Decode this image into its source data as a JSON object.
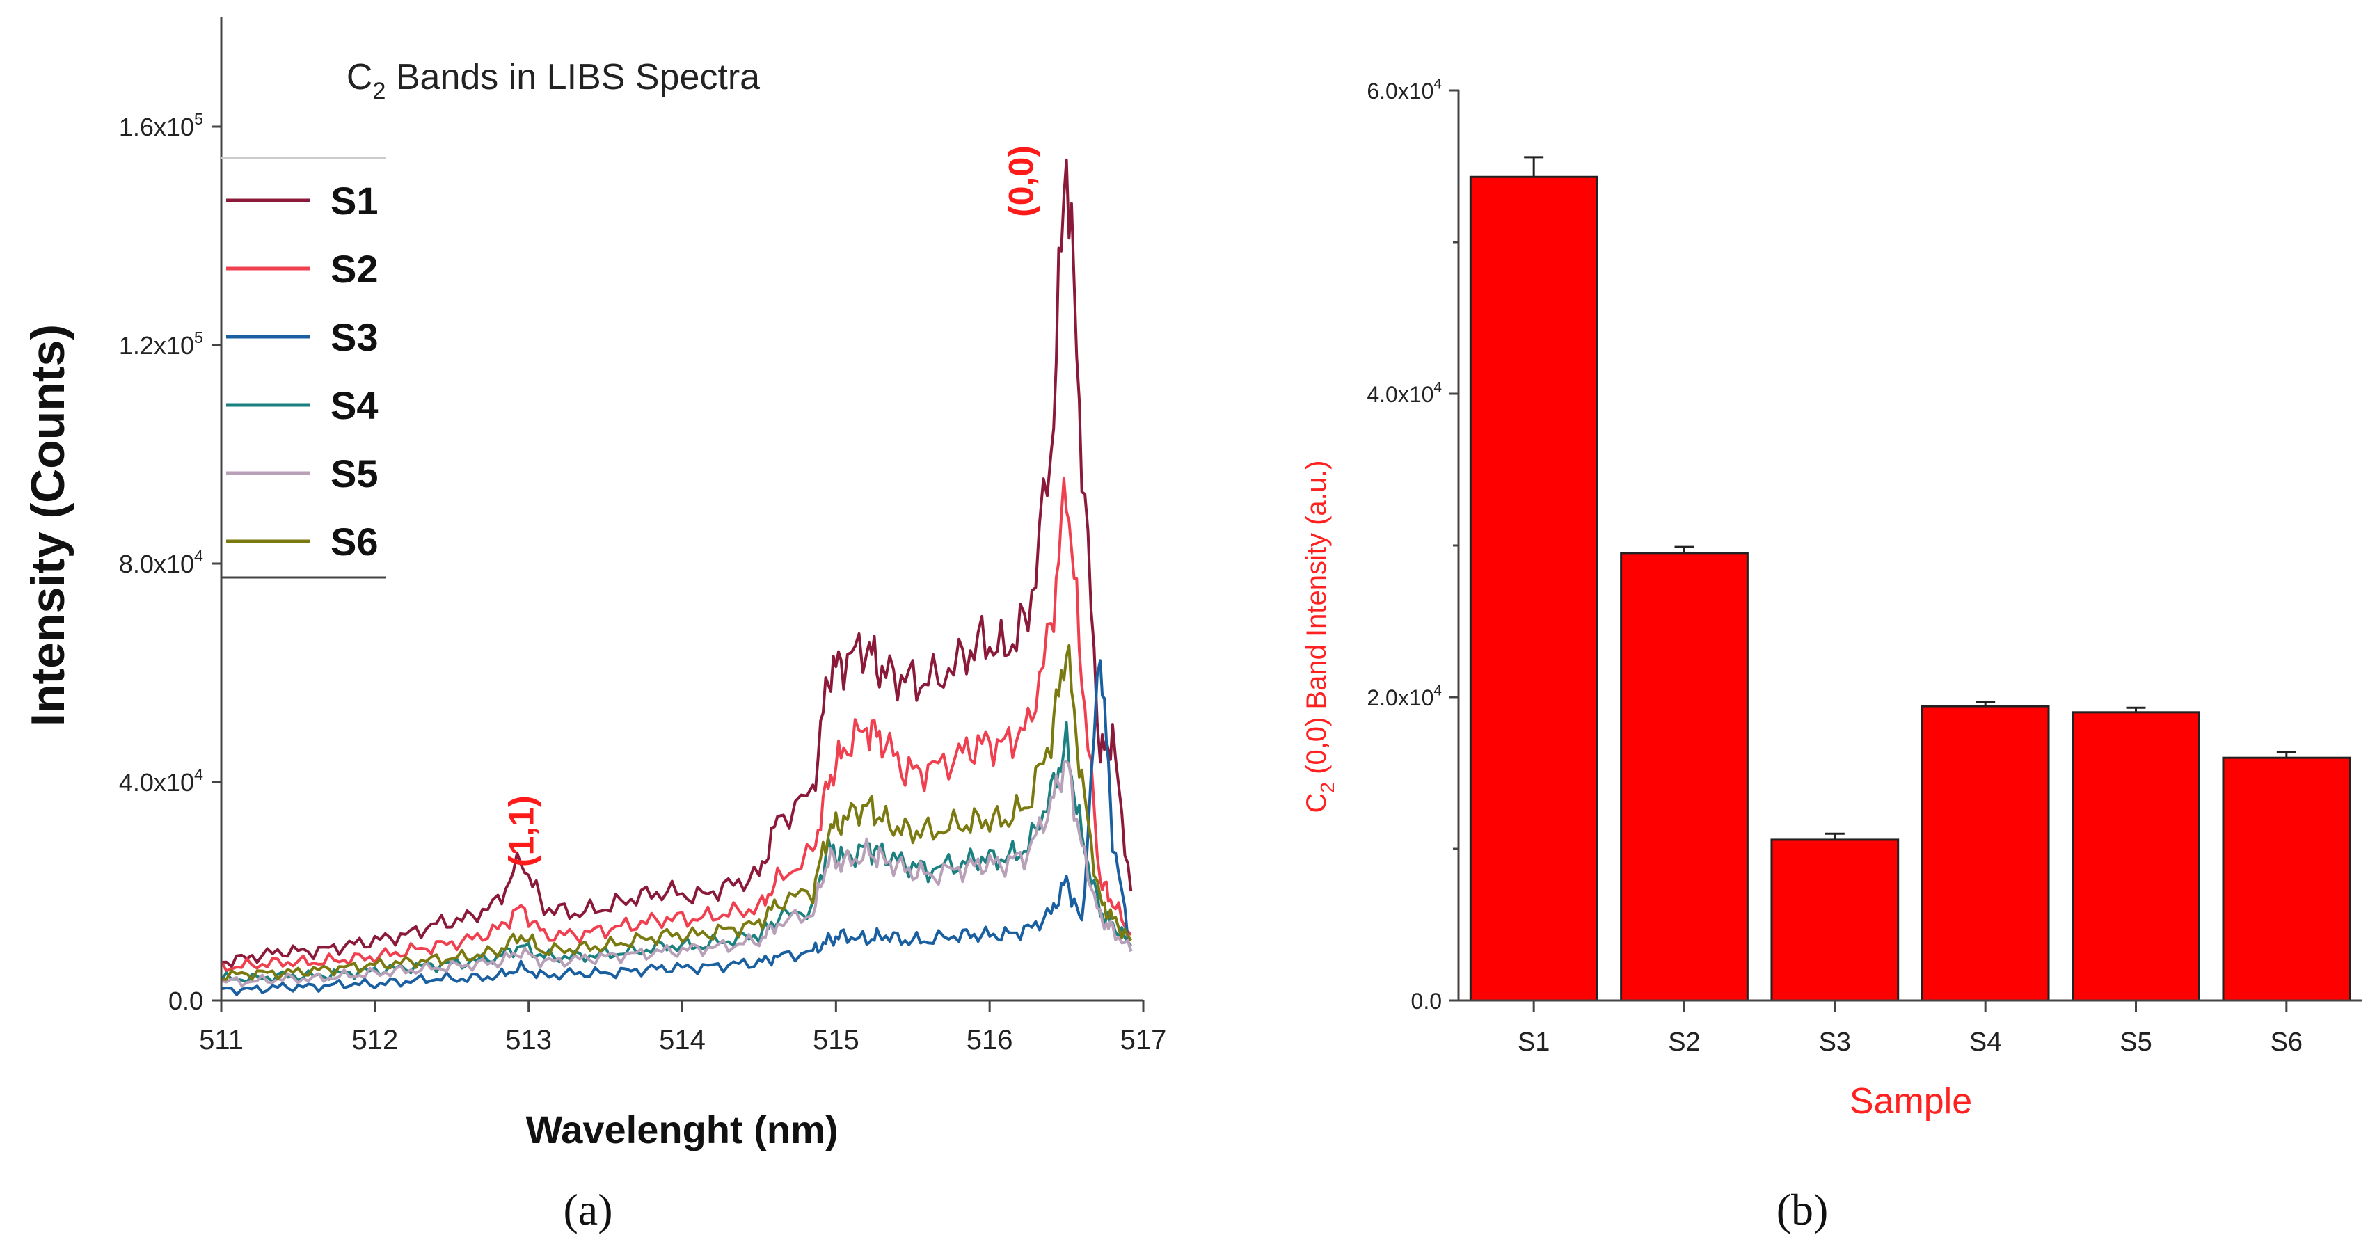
{
  "chart_data": [
    {
      "type": "line",
      "panel_label": "(a)",
      "title_main": "C",
      "title_sub": "2",
      "title_rest": " Bands in LIBS Spectra",
      "xlabel": "Wavelenght (nm)",
      "ylabel": "Intensity (Counts)",
      "xlim": [
        511,
        517
      ],
      "ylim": [
        0,
        180000
      ],
      "x_ticks": [
        511,
        512,
        513,
        514,
        515,
        516,
        517
      ],
      "x_tick_labels": [
        "511",
        "512",
        "513",
        "514",
        "515",
        "516",
        "517"
      ],
      "y_ticks": [
        0,
        40000,
        80000,
        120000,
        160000
      ],
      "y_tick_labels": [
        {
          "base": "0.0",
          "exp": ""
        },
        {
          "base": "4.0x10",
          "exp": "4"
        },
        {
          "base": "8.0x10",
          "exp": "4"
        },
        {
          "base": "1.2x10",
          "exp": "5"
        },
        {
          "base": "1.6x10",
          "exp": "5"
        }
      ],
      "annotations": [
        {
          "text": "(1,1)",
          "x": 512.95,
          "y": 31000
        },
        {
          "text": "(0,0)",
          "x": 516.2,
          "y": 150000
        }
      ],
      "legend_position": "top-left",
      "x": [
        511.0,
        511.2,
        511.4,
        511.6,
        511.8,
        512.0,
        512.2,
        512.4,
        512.6,
        512.8,
        512.95,
        513.1,
        513.3,
        513.5,
        513.7,
        513.9,
        514.1,
        514.3,
        514.5,
        514.62,
        514.85,
        514.95,
        515.05,
        515.2,
        515.3,
        515.45,
        515.6,
        515.8,
        515.95,
        516.1,
        516.25,
        516.4,
        516.5,
        516.6,
        516.72,
        516.8,
        516.92
      ],
      "series": [
        {
          "name": "S1",
          "color": "#8b1a3a",
          "values": [
            7000,
            8000,
            9000,
            9000,
            10000,
            11000,
            12000,
            14000,
            15000,
            18000,
            26000,
            17000,
            16000,
            17000,
            19000,
            20000,
            19000,
            21000,
            23000,
            33000,
            38000,
            60000,
            62000,
            65000,
            60000,
            59000,
            58000,
            62000,
            66000,
            64000,
            70000,
            100000,
            157000,
            100000,
            45000,
            48000,
            20000
          ]
        },
        {
          "name": "S2",
          "color": "#f04050",
          "values": [
            6000,
            6500,
            7000,
            7000,
            7500,
            8000,
            9000,
            10000,
            11000,
            13000,
            17000,
            12000,
            12000,
            13000,
            14000,
            15000,
            15000,
            16000,
            17000,
            22000,
            27000,
            40000,
            46000,
            50000,
            48000,
            42000,
            42000,
            45000,
            47000,
            47000,
            50000,
            68000,
            95000,
            60000,
            22000,
            18000,
            12000
          ]
        },
        {
          "name": "S3",
          "color": "#1a5fa0",
          "values": [
            2000,
            2000,
            2500,
            2500,
            3000,
            3000,
            3500,
            4000,
            4000,
            4500,
            6000,
            4500,
            5000,
            5000,
            5500,
            6000,
            6000,
            6500,
            7000,
            8000,
            9000,
            11000,
            12000,
            11000,
            12000,
            11000,
            11000,
            12000,
            12000,
            12000,
            13000,
            16000,
            22000,
            14000,
            65000,
            30000,
            9000
          ]
        },
        {
          "name": "S4",
          "color": "#1a8080",
          "values": [
            4000,
            4000,
            4500,
            4500,
            5000,
            5500,
            6000,
            6500,
            7000,
            8000,
            10000,
            8000,
            8000,
            8500,
            9000,
            10000,
            10000,
            11000,
            12000,
            15000,
            17000,
            28000,
            26000,
            28000,
            27000,
            25000,
            24000,
            25000,
            26000,
            26000,
            28000,
            38000,
            47000,
            30000,
            16000,
            14000,
            10000
          ]
        },
        {
          "name": "S5",
          "color": "#b8a0b8",
          "values": [
            3500,
            3500,
            4000,
            4000,
            4500,
            5000,
            5500,
            6000,
            6500,
            7000,
            9000,
            7000,
            7500,
            8000,
            8500,
            9000,
            9500,
            10000,
            11000,
            14000,
            16000,
            26000,
            25000,
            27000,
            26000,
            24000,
            23000,
            24000,
            25000,
            25000,
            27000,
            36000,
            44000,
            28000,
            15000,
            13000,
            9000
          ]
        },
        {
          "name": "S6",
          "color": "#7a7a10",
          "values": [
            4500,
            5000,
            5000,
            5500,
            6000,
            6500,
            7000,
            7500,
            8000,
            9000,
            12000,
            9000,
            9500,
            10000,
            11000,
            12000,
            12000,
            13000,
            14000,
            18000,
            20000,
            31000,
            33000,
            36000,
            33000,
            31000,
            31000,
            32000,
            33000,
            33000,
            36000,
            48000,
            65000,
            40000,
            18000,
            15000,
            11000
          ]
        }
      ]
    },
    {
      "type": "bar",
      "panel_label": "(b)",
      "xlabel": "Sample",
      "ylabel_main": "C",
      "ylabel_sub": "2",
      "ylabel_rest": " (0,0) Band Intensity (a.u.)",
      "ylim": [
        0,
        60000
      ],
      "y_ticks": [
        0,
        20000,
        40000,
        60000
      ],
      "y_tick_labels": [
        {
          "base": "0.0",
          "exp": ""
        },
        {
          "base": "2.0x10",
          "exp": "4"
        },
        {
          "base": "4.0x10",
          "exp": "4"
        },
        {
          "base": "6.0x10",
          "exp": "4"
        }
      ],
      "categories": [
        "S1",
        "S2",
        "S3",
        "S4",
        "S5",
        "S6"
      ],
      "values": [
        54300,
        29500,
        10600,
        19400,
        19000,
        16000
      ],
      "errors": [
        1300,
        400,
        400,
        300,
        300,
        400
      ],
      "bar_color": "#ff0000"
    }
  ]
}
